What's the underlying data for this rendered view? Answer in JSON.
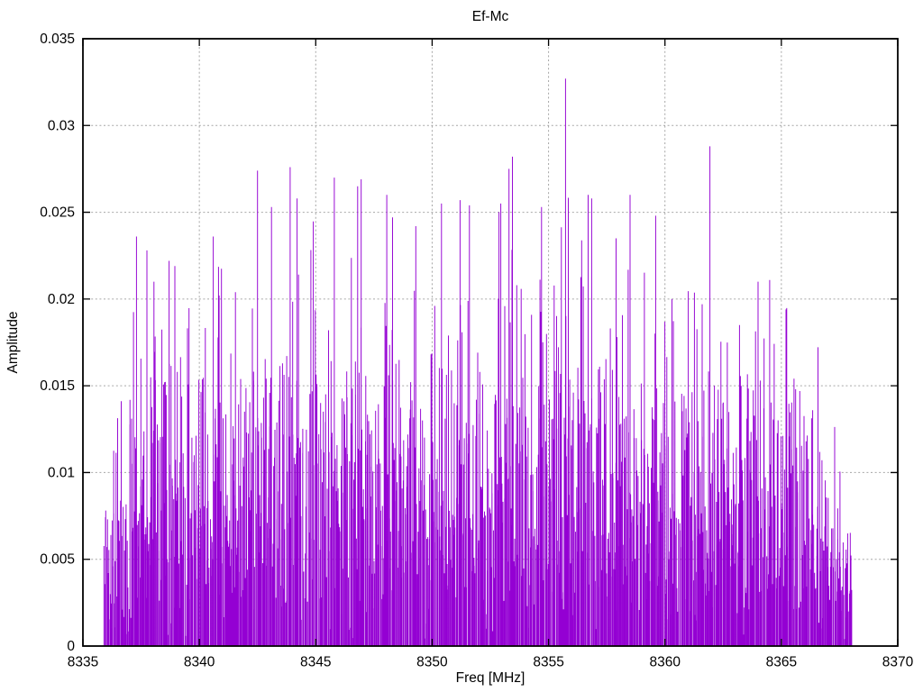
{
  "chart_data": {
    "type": "line",
    "subtype": "impulse-spectrum",
    "title": "Ef-Mc",
    "xlabel": "Freq [MHz]",
    "ylabel": "Amplitude",
    "xlim": [
      8335,
      8370
    ],
    "ylim": [
      0,
      0.035
    ],
    "xticks": [
      8335,
      8340,
      8345,
      8350,
      8355,
      8360,
      8365,
      8370
    ],
    "yticks": [
      0,
      0.005,
      0.01,
      0.015,
      0.02,
      0.025,
      0.03,
      0.035
    ],
    "ytick_labels": [
      "0",
      "0.005",
      "0.01",
      "0.015",
      "0.02",
      "0.025",
      "0.03",
      "0.035"
    ],
    "grid": {
      "visible": true,
      "style": "dotted",
      "color": "#a6a6a6"
    },
    "legend": {
      "visible": false
    },
    "line_color": "#9400d3",
    "axis_color": "#000000",
    "background": "#ffffff",
    "spectrum": {
      "description": "dense noise-like amplitude spectrum drawn as vertical impulses from 0",
      "x_start": 8335.9,
      "x_end": 8368.05,
      "n_points": 1300,
      "seed": 20240615,
      "sigma": 0.0072,
      "min_amplitude": 0.0004,
      "natural_max_cap": 0.0285,
      "envelope": [
        [
          8335.9,
          0.42
        ],
        [
          8336.3,
          0.6
        ],
        [
          8336.8,
          0.8
        ],
        [
          8337.5,
          0.95
        ],
        [
          8338.5,
          1.0
        ],
        [
          8340.0,
          0.97
        ],
        [
          8342.0,
          1.0
        ],
        [
          8344.0,
          1.03
        ],
        [
          8346.0,
          1.03
        ],
        [
          8348.0,
          1.02
        ],
        [
          8350.0,
          1.03
        ],
        [
          8352.0,
          1.05
        ],
        [
          8354.0,
          1.08
        ],
        [
          8356.0,
          1.05
        ],
        [
          8358.0,
          1.0
        ],
        [
          8360.0,
          0.97
        ],
        [
          8362.0,
          0.97
        ],
        [
          8364.0,
          0.97
        ],
        [
          8365.3,
          0.9
        ],
        [
          8366.3,
          0.75
        ],
        [
          8367.2,
          0.6
        ],
        [
          8368.05,
          0.42
        ]
      ],
      "peaks": [
        [
          8337.3,
          0.0236
        ],
        [
          8337.75,
          0.0228
        ],
        [
          8338.05,
          0.021
        ],
        [
          8338.7,
          0.0222
        ],
        [
          8338.95,
          0.0219
        ],
        [
          8340.6,
          0.0236
        ],
        [
          8340.85,
          0.0202
        ],
        [
          8341.55,
          0.0204
        ],
        [
          8342.5,
          0.0274
        ],
        [
          8343.1,
          0.0253
        ],
        [
          8343.9,
          0.0276
        ],
        [
          8344.2,
          0.0258
        ],
        [
          8345.8,
          0.027
        ],
        [
          8346.8,
          0.0265
        ],
        [
          8346.95,
          0.0269
        ],
        [
          8348.05,
          0.026
        ],
        [
          8348.3,
          0.0247
        ],
        [
          8349.3,
          0.0242
        ],
        [
          8350.4,
          0.0255
        ],
        [
          8351.2,
          0.0257
        ],
        [
          8351.6,
          0.0254
        ],
        [
          8352.95,
          0.0255
        ],
        [
          8353.3,
          0.0275
        ],
        [
          8353.45,
          0.0282
        ],
        [
          8354.7,
          0.0253
        ],
        [
          8355.73,
          0.0327
        ],
        [
          8356.7,
          0.026
        ],
        [
          8356.85,
          0.0258
        ],
        [
          8357.9,
          0.0235
        ],
        [
          8358.5,
          0.026
        ],
        [
          8359.6,
          0.0248
        ],
        [
          8360.3,
          0.02
        ],
        [
          8361.6,
          0.0197
        ],
        [
          8361.93,
          0.0288
        ],
        [
          8363.2,
          0.0185
        ],
        [
          8364.0,
          0.021
        ],
        [
          8364.5,
          0.0211
        ],
        [
          8365.2,
          0.0194
        ]
      ]
    }
  }
}
